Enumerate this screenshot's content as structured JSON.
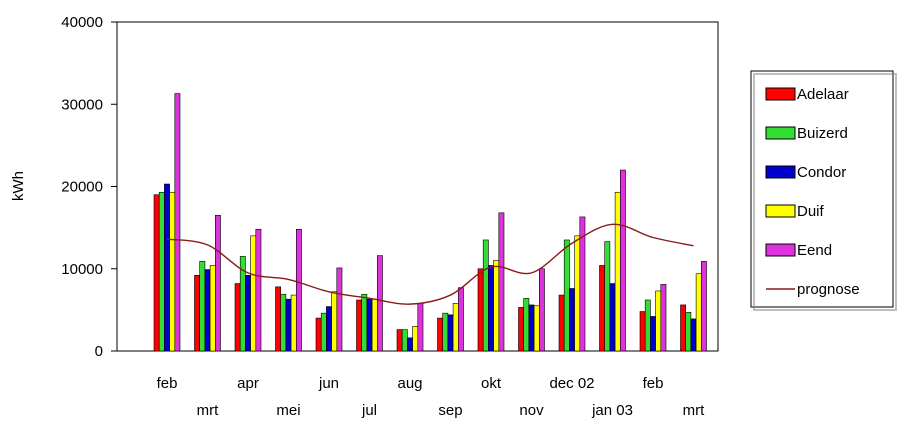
{
  "chart_data": {
    "type": "bar",
    "title": "",
    "xlabel": "",
    "ylabel": "kWh",
    "ylim": [
      0,
      40000
    ],
    "yticks": [
      "0",
      "10000",
      "20000",
      "30000",
      "40000"
    ],
    "grid": false,
    "legend_position": "right",
    "categories": [
      "feb",
      "mrt",
      "apr",
      "mei",
      "jun",
      "jul",
      "aug",
      "sep",
      "okt",
      "nov",
      "dec 02",
      "jan 03",
      "feb",
      "mrt"
    ],
    "series": [
      {
        "name": "Adelaar",
        "color": "#ff0000",
        "values": [
          19000,
          9200,
          8200,
          7800,
          4000,
          6200,
          2600,
          4000,
          10000,
          5300,
          6800,
          10400,
          4800,
          5600
        ]
      },
      {
        "name": "Buizerd",
        "color": "#33dd33",
        "values": [
          19300,
          10900,
          11500,
          6900,
          4600,
          6900,
          2600,
          4600,
          13500,
          6400,
          13500,
          13300,
          6200,
          4700
        ]
      },
      {
        "name": "Condor",
        "color": "#0000cc",
        "values": [
          20300,
          9900,
          9200,
          6300,
          5400,
          6300,
          1600,
          4400,
          10400,
          5600,
          7600,
          8200,
          4200,
          3900
        ]
      },
      {
        "name": "Duif",
        "color": "#ffff00",
        "values": [
          19300,
          10400,
          14000,
          6800,
          7200,
          6300,
          3000,
          5800,
          11000,
          5500,
          14000,
          19300,
          7300,
          9400
        ]
      },
      {
        "name": "Eend",
        "color": "#dd33dd",
        "values": [
          31300,
          16500,
          14800,
          14800,
          10100,
          11600,
          5800,
          7700,
          16800,
          10000,
          16300,
          22000,
          8100,
          10900
        ]
      }
    ],
    "line": {
      "name": "prognose",
      "color": "#8b1a1a",
      "values": [
        13600,
        12900,
        9500,
        8700,
        7200,
        6400,
        5700,
        6800,
        10200,
        9500,
        13100,
        15400,
        13800,
        12800
      ]
    }
  }
}
